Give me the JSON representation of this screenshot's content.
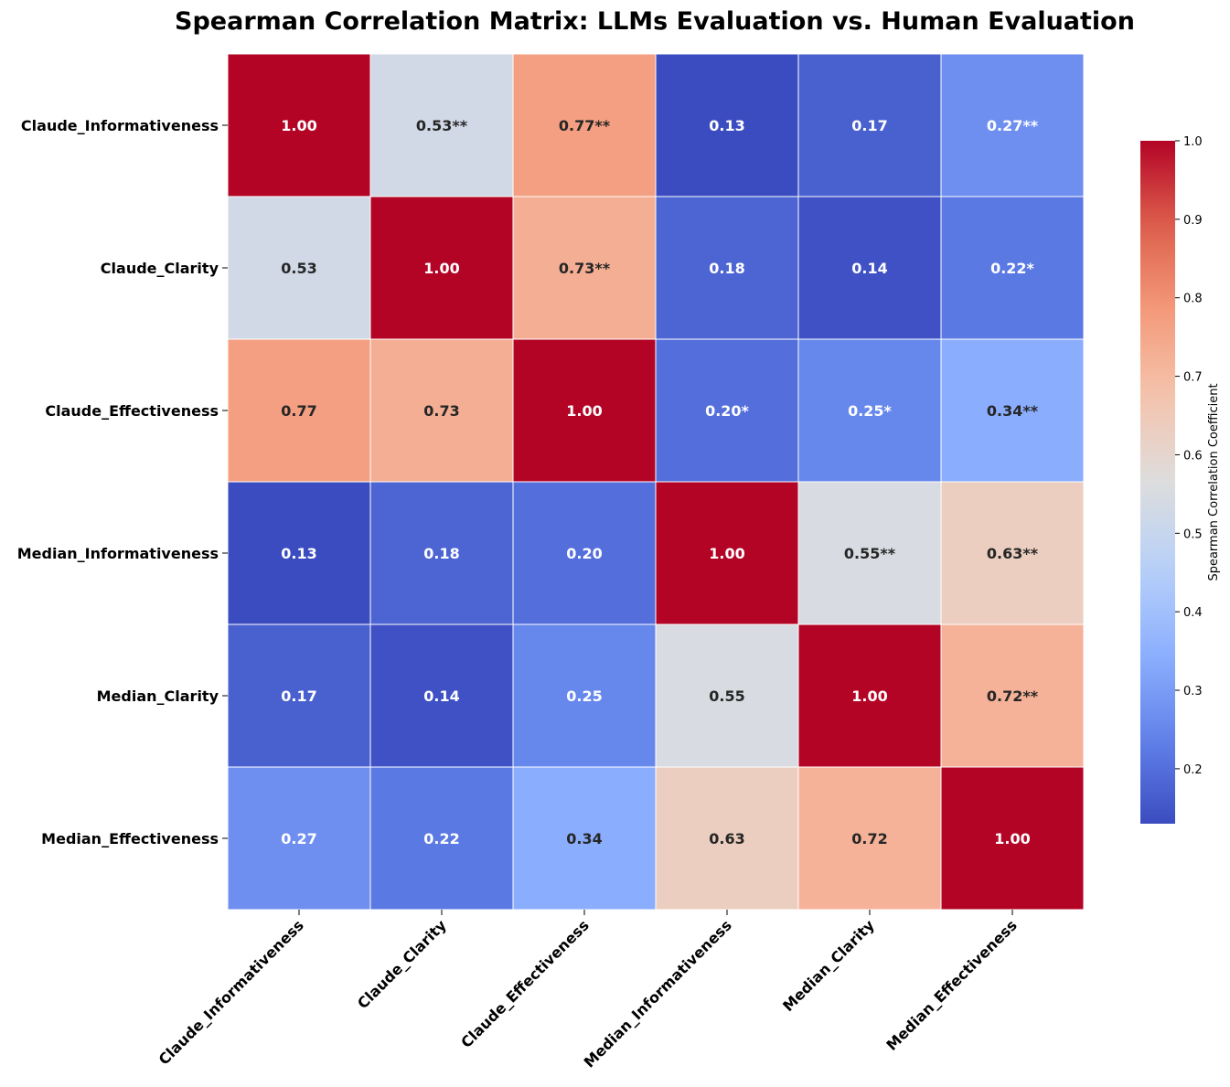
{
  "chart_data": {
    "type": "heatmap",
    "title": "Spearman Correlation Matrix: LLMs Evaluation vs. Human Evaluation",
    "rows": [
      "Claude_Informativeness",
      "Claude_Clarity",
      "Claude_Effectiveness",
      "Median_Informativeness",
      "Median_Clarity",
      "Median_Effectiveness"
    ],
    "columns": [
      "Claude_Informativeness",
      "Claude_Clarity",
      "Claude_Effectiveness",
      "Median_Informativeness",
      "Median_Clarity",
      "Median_Effectiveness"
    ],
    "values": [
      [
        1.0,
        0.53,
        0.77,
        0.13,
        0.17,
        0.27
      ],
      [
        0.53,
        1.0,
        0.73,
        0.18,
        0.14,
        0.22
      ],
      [
        0.77,
        0.73,
        1.0,
        0.2,
        0.25,
        0.34
      ],
      [
        0.13,
        0.18,
        0.2,
        1.0,
        0.55,
        0.63
      ],
      [
        0.17,
        0.14,
        0.25,
        0.55,
        1.0,
        0.72
      ],
      [
        0.27,
        0.22,
        0.34,
        0.63,
        0.72,
        1.0
      ]
    ],
    "annotations": [
      [
        "1.00",
        "0.53**",
        "0.77**",
        "0.13",
        "0.17",
        "0.27**"
      ],
      [
        "0.53",
        "1.00",
        "0.73**",
        "0.18",
        "0.14",
        "0.22*"
      ],
      [
        "0.77",
        "0.73",
        "1.00",
        "0.20*",
        "0.25*",
        "0.34**"
      ],
      [
        "0.13",
        "0.18",
        "0.20",
        "1.00",
        "0.55**",
        "0.63**"
      ],
      [
        "0.17",
        "0.14",
        "0.25",
        "0.55",
        "1.00",
        "0.72**"
      ],
      [
        "0.27",
        "0.22",
        "0.34",
        "0.63",
        "0.72",
        "1.00"
      ]
    ],
    "colormap": "coolwarm",
    "colorbar": {
      "label": "Spearman Correlation Coefficient",
      "range": [
        0.13,
        1.0
      ],
      "ticks": [
        "0.2",
        "0.3",
        "0.4",
        "0.5",
        "0.6",
        "0.7",
        "0.8",
        "0.9",
        "1.0"
      ],
      "tick_values": [
        0.2,
        0.3,
        0.4,
        0.5,
        0.6,
        0.7,
        0.8,
        0.9,
        1.0
      ]
    }
  }
}
